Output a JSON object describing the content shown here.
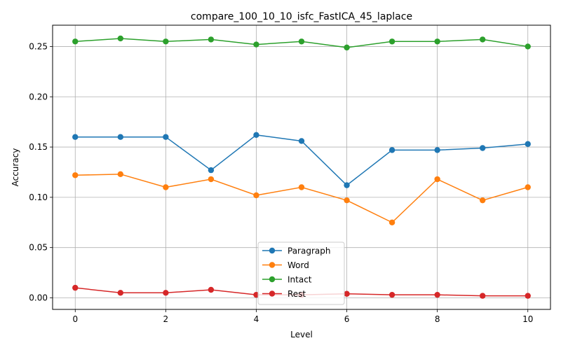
{
  "chart_data": {
    "type": "line",
    "title": "compare_100_10_10_isfc_FastICA_45_laplace",
    "xlabel": "Level",
    "ylabel": "Accuracy",
    "x": [
      0,
      1,
      2,
      3,
      4,
      5,
      6,
      7,
      8,
      9,
      10
    ],
    "xlim": [
      -0.5,
      10.5
    ],
    "ylim": [
      -0.0115,
      0.2712
    ],
    "xticks": [
      "0",
      "2",
      "4",
      "6",
      "8",
      "10"
    ],
    "yticks": [
      "0.00",
      "0.05",
      "0.10",
      "0.15",
      "0.20",
      "0.25"
    ],
    "grid": true,
    "legend_position": "lower-center",
    "series": [
      {
        "name": "Paragraph",
        "color": "#1f77b4",
        "values": [
          0.16,
          0.16,
          0.16,
          0.127,
          0.162,
          0.156,
          0.112,
          0.147,
          0.147,
          0.149,
          0.153
        ]
      },
      {
        "name": "Word",
        "color": "#ff7f0e",
        "values": [
          0.122,
          0.123,
          0.11,
          0.118,
          0.102,
          0.11,
          0.097,
          0.075,
          0.118,
          0.097,
          0.11
        ]
      },
      {
        "name": "Intact",
        "color": "#2ca02c",
        "values": [
          0.255,
          0.258,
          0.255,
          0.257,
          0.252,
          0.255,
          0.249,
          0.255,
          0.255,
          0.257,
          0.25
        ]
      },
      {
        "name": "Rest",
        "color": "#d62728",
        "values": [
          0.01,
          0.005,
          0.005,
          0.008,
          0.003,
          0.003,
          0.004,
          0.003,
          0.003,
          0.002,
          0.002
        ]
      }
    ]
  }
}
